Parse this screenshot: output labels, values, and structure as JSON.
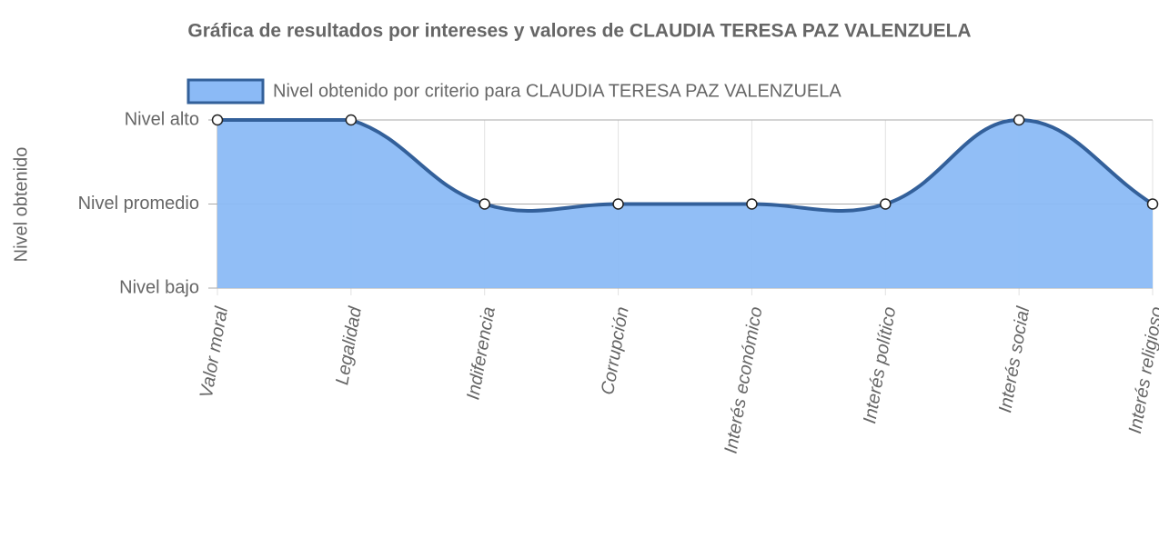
{
  "chart_data": {
    "type": "line",
    "title": "Gráfica de resultados por intereses y valores de CLAUDIA TERESA PAZ VALENZUELA",
    "y_label": "Nivel obtenido",
    "categories": [
      "Valor moral",
      "Legalidad",
      "Indiferencia",
      "Corrupción",
      "Interés económico",
      "Interés político",
      "Interés social",
      "Interés religioso"
    ],
    "series": [
      {
        "name": "Nivel obtenido por criterio para CLAUDIA TERESA PAZ VALENZUELA",
        "color": "#33609a",
        "fill": "#8bbaf6",
        "values": [
          3,
          3,
          2,
          2,
          2,
          2,
          3,
          2
        ]
      }
    ],
    "ylim": [
      1,
      3
    ],
    "yticks": [
      {
        "value": 1,
        "label": "Nivel bajo"
      },
      {
        "value": 2,
        "label": "Nivel promedio"
      },
      {
        "value": 3,
        "label": "Nivel alto"
      }
    ],
    "grid": true,
    "legend": "top"
  }
}
